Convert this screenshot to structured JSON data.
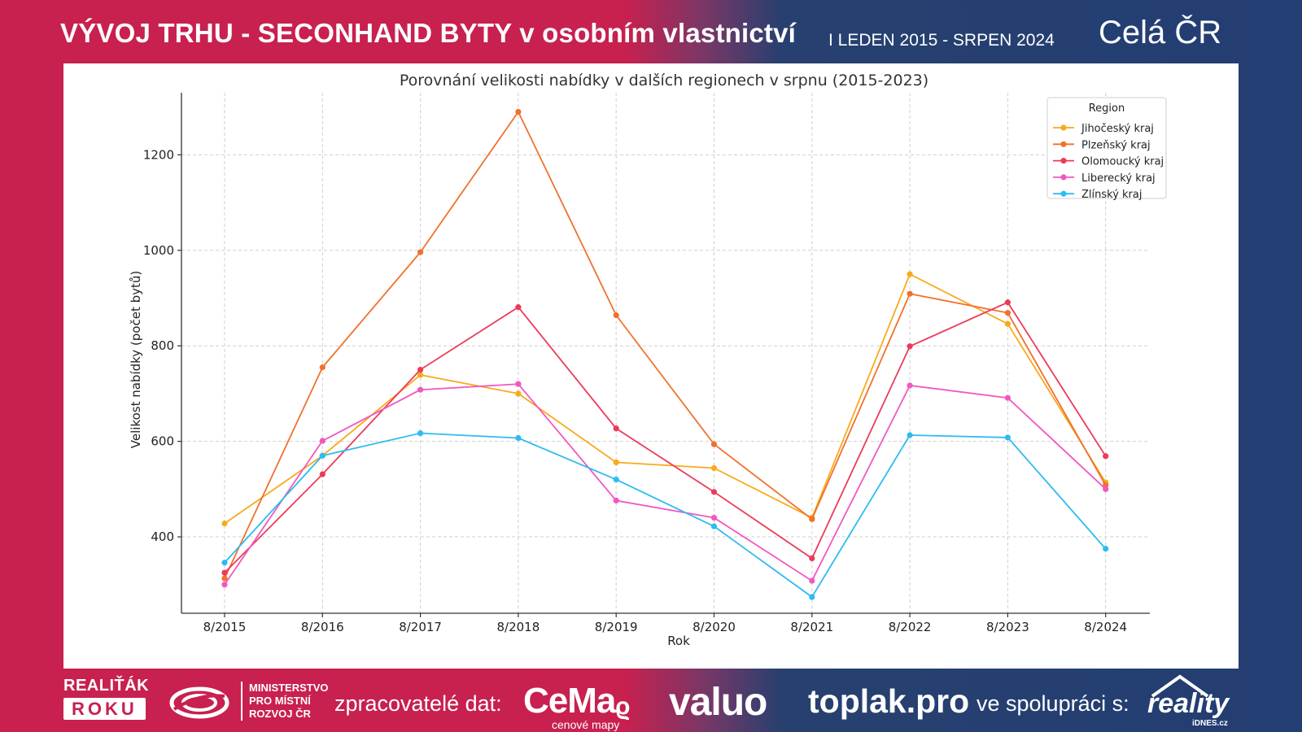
{
  "header": {
    "title_main": "VÝVOJ TRHU - SECONHAND BYTY v osobním vlastnictví",
    "title_sub": "I LEDEN 2015 - SRPEN 2024",
    "region": "Celá ČR"
  },
  "chart_data": {
    "type": "line",
    "title": "Porovnání velikosti nabídky v dalších regionech v srpnu (2015-2023)",
    "xlabel": "Rok",
    "ylabel": "Velikost nabídky (počet bytů)",
    "categories": [
      "8/2015",
      "8/2016",
      "8/2017",
      "8/2018",
      "8/2019",
      "8/2020",
      "8/2021",
      "8/2022",
      "8/2023",
      "8/2024"
    ],
    "ylim": [
      240,
      1330
    ],
    "yticks": [
      400,
      600,
      800,
      1000,
      1200
    ],
    "grid": true,
    "legend_title": "Region",
    "legend_position": "top-right",
    "series": [
      {
        "name": "Jihočeský kraj",
        "color": "#f9aa1a",
        "values": [
          428,
          570,
          739,
          700,
          556,
          544,
          440,
          950,
          846,
          514
        ]
      },
      {
        "name": "Plzeňský kraj",
        "color": "#f0712e",
        "values": [
          313,
          755,
          996,
          1290,
          864,
          594,
          437,
          909,
          869,
          508
        ]
      },
      {
        "name": "Olomoucký kraj",
        "color": "#ec3a5a",
        "values": [
          325,
          531,
          750,
          881,
          627,
          494,
          355,
          799,
          891,
          569
        ]
      },
      {
        "name": "Liberecký kraj",
        "color": "#f257c0",
        "values": [
          300,
          601,
          708,
          720,
          476,
          440,
          308,
          717,
          691,
          500
        ]
      },
      {
        "name": "Zlínský kraj",
        "color": "#2dbcf0",
        "values": [
          346,
          570,
          617,
          607,
          520,
          422,
          274,
          613,
          608,
          375
        ]
      }
    ]
  },
  "footer": {
    "realitak_top": "REALIŤÁK",
    "realitak_bottom": "ROKU",
    "ministry": "MINISTERSTVO\nPRO MÍSTNÍ\nROZVOJ ČR",
    "processors_label": "zpracovatelé dat:",
    "cemap": "CeMaᵨ",
    "cemap_sub": "cenové mapy",
    "valuo": "valuo",
    "toplak": "toplak.pro",
    "cooperation_label": "ve spolupráci s:",
    "reality": "reality",
    "idnes": "iDNES.cz"
  }
}
